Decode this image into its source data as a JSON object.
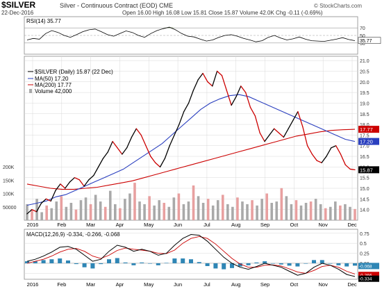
{
  "header": {
    "symbol": "$SILVER",
    "description": "Silver - Continuous Contract (EOD) CME",
    "date": "22-Dec-2016",
    "quote": "Open 16.00  High 16.08  Low 15.81  Close 15.87  Volume 42.0K  Chg -0.11 (-0.69%)",
    "watermark": "© StockCharts.com"
  },
  "colors": {
    "price": "#000000",
    "price_down": "#cc0000",
    "ma50": "#2a3fbf",
    "ma200": "#cc0000",
    "volume_up": "#a9a9a9",
    "volume_down": "#e8a0a0",
    "rsi_fill": "#6b8e4e",
    "macd_hist": "#2f86b5",
    "grid": "#d8d8d8"
  },
  "legend": {
    "main": "$SILVER (Daily) 15.87 (22 Dec)",
    "ma50": "MA(50) 17.20",
    "ma200": "MA(200) 17.77",
    "volume": "Volume 42,000"
  },
  "chart_data": [
    {
      "type": "line",
      "panel": "rsi",
      "title": "RSI(14) 35.77",
      "series": [
        {
          "values": [
            38,
            42,
            40,
            55,
            63,
            58,
            50,
            45,
            52,
            60,
            65,
            67,
            60,
            52,
            48,
            55,
            62,
            58,
            50,
            45,
            55,
            63,
            68,
            72,
            65,
            55,
            48,
            46,
            40,
            35,
            38,
            45,
            50,
            52,
            48,
            42,
            38,
            33,
            36,
            45,
            50,
            43,
            38,
            41,
            46,
            40,
            36,
            35,
            34,
            37,
            40,
            44,
            39,
            36
          ]
        }
      ],
      "ylim": [
        0,
        100
      ],
      "yticks": [
        30,
        50,
        70
      ],
      "price_tag": "35.77"
    },
    {
      "type": "line",
      "panel": "price",
      "xlabels": [
        "2016",
        "Feb",
        "Mar",
        "Apr",
        "May",
        "Jun",
        "Jul",
        "Aug",
        "Sep",
        "Oct",
        "Nov",
        "Dec"
      ],
      "ylim": [
        13.5,
        21.2
      ],
      "yticks": [
        14.0,
        14.5,
        15.0,
        15.5,
        16.0,
        16.5,
        17.0,
        17.5,
        18.0,
        18.5,
        19.0,
        19.5,
        20.0,
        20.5,
        21.0
      ],
      "series": [
        {
          "name": "$SILVER (Daily)",
          "values": [
            13.8,
            14.0,
            13.9,
            14.3,
            14.5,
            14.4,
            14.9,
            15.2,
            15.0,
            15.3,
            15.5,
            15.4,
            15.1,
            15.4,
            15.6,
            16.0,
            16.4,
            16.7,
            17.2,
            16.9,
            16.6,
            16.9,
            17.4,
            17.8,
            17.5,
            17.0,
            16.5,
            16.2,
            16.0,
            16.4,
            17.0,
            17.5,
            18.0,
            18.6,
            19.0,
            19.6,
            20.1,
            20.4,
            20.0,
            19.8,
            20.5,
            20.3,
            19.6,
            18.9,
            19.3,
            19.8,
            19.5,
            18.8,
            18.4,
            17.6,
            17.2,
            17.5,
            17.8,
            17.6,
            17.4,
            17.8,
            18.2,
            18.6,
            17.9,
            17.0,
            16.6,
            16.3,
            16.2,
            16.5,
            16.9,
            17.0,
            16.6,
            16.1,
            15.9,
            15.87
          ]
        },
        {
          "name": "MA(50)",
          "values": [
            14.2,
            14.3,
            14.4,
            14.6,
            14.7,
            14.9,
            15.1,
            15.3,
            15.5,
            15.7,
            15.9,
            16.2,
            16.5,
            16.8,
            17.1,
            17.5,
            17.9,
            18.3,
            18.7,
            19.0,
            19.2,
            19.35,
            19.4,
            19.3,
            19.1,
            18.9,
            18.7,
            18.5,
            18.3,
            18.1,
            17.9,
            17.7,
            17.5,
            17.3,
            17.2
          ]
        },
        {
          "name": "MA(200)",
          "values": [
            15.2,
            15.1,
            15.0,
            14.95,
            14.95,
            15.0,
            15.05,
            15.15,
            15.25,
            15.35,
            15.5,
            15.65,
            15.8,
            15.95,
            16.1,
            16.25,
            16.4,
            16.55,
            16.7,
            16.85,
            17.0,
            17.15,
            17.3,
            17.45,
            17.55,
            17.65,
            17.72,
            17.75,
            17.77
          ]
        }
      ],
      "price_tags": [
        "17.77",
        "17.20",
        "15.87"
      ],
      "volume": {
        "ylim": [
          0,
          200000
        ],
        "yticks_labels": [
          "200K",
          "150K",
          "100K",
          "50000"
        ],
        "values": [
          60000,
          40000,
          80000,
          30000,
          55000,
          45000,
          70000,
          90000,
          50000,
          65000,
          40000,
          75000,
          85000,
          60000,
          95000,
          70000,
          50000,
          110000,
          60000,
          45000,
          80000,
          100000,
          140000,
          70000,
          60000,
          90000,
          55000,
          75000,
          65000,
          50000,
          85000,
          100000,
          60000,
          70000,
          130000,
          90000,
          65000,
          80000,
          55000,
          75000,
          95000,
          60000,
          50000,
          85000,
          70000,
          60000,
          75000,
          55000,
          80000,
          100000,
          65000,
          70000,
          120000,
          90000,
          60000,
          75000,
          55000,
          65000,
          70000,
          80000,
          60000,
          45000,
          50000,
          70000,
          55000,
          60000,
          50000,
          42000
        ]
      }
    },
    {
      "type": "line",
      "panel": "macd",
      "title": "MACD(12,26,9) -0.334, -0.266, -0.068",
      "ylim": [
        -0.4,
        0.85
      ],
      "yticks": [
        0.75,
        0.5,
        0.25,
        0.0,
        -0.25
      ],
      "series": [
        {
          "name": "MACD",
          "values": [
            0.05,
            0.1,
            0.18,
            0.28,
            0.4,
            0.42,
            0.35,
            0.2,
            0.05,
            0.1,
            0.3,
            0.45,
            0.4,
            0.3,
            0.35,
            0.3,
            0.2,
            0.25,
            0.45,
            0.62,
            0.72,
            0.7,
            0.55,
            0.35,
            0.15,
            0.0,
            -0.1,
            -0.15,
            -0.08,
            0.0,
            -0.05,
            -0.1,
            -0.2,
            -0.3,
            -0.25,
            -0.1,
            0.0,
            -0.05,
            -0.15,
            -0.28,
            -0.33
          ]
        },
        {
          "name": "Signal",
          "values": [
            0.0,
            0.05,
            0.1,
            0.18,
            0.28,
            0.35,
            0.37,
            0.3,
            0.18,
            0.12,
            0.2,
            0.32,
            0.38,
            0.35,
            0.33,
            0.3,
            0.25,
            0.24,
            0.33,
            0.5,
            0.62,
            0.67,
            0.62,
            0.48,
            0.3,
            0.12,
            -0.02,
            -0.1,
            -0.1,
            -0.05,
            -0.04,
            -0.07,
            -0.14,
            -0.22,
            -0.25,
            -0.18,
            -0.08,
            -0.05,
            -0.1,
            -0.2,
            -0.27
          ]
        }
      ],
      "hist_label": "-0.068",
      "tags": [
        "-0.068",
        "-0.266",
        "-0.334"
      ]
    }
  ],
  "xlabels_bottom": [
    "2016",
    "Feb",
    "Mar",
    "Apr",
    "May",
    "Jun",
    "Jul",
    "Aug",
    "Sep",
    "Oct",
    "Nov",
    "Dec"
  ]
}
